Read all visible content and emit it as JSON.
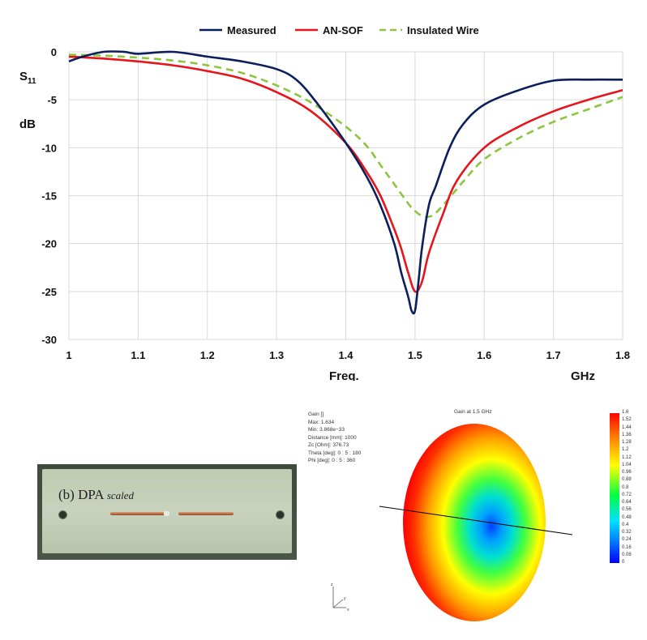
{
  "chart_data": {
    "type": "line",
    "xlabel": "Freq.",
    "xunit": "GHz",
    "ylabel": "S11",
    "yunit": "dB",
    "xlim": [
      1,
      1.8
    ],
    "ylim": [
      -30,
      0
    ],
    "xticks": [
      "1",
      "1.1",
      "1.2",
      "1.3",
      "1.4",
      "1.5",
      "1.6",
      "1.7",
      "1.8"
    ],
    "yticks": [
      "0",
      "-5",
      "-10",
      "-15",
      "-20",
      "-25",
      "-30"
    ],
    "grid": true,
    "legend": "top",
    "series": [
      {
        "name": "Measured",
        "color": "#0b1f5c",
        "style": "solid",
        "x": [
          1.0,
          1.02,
          1.05,
          1.08,
          1.1,
          1.15,
          1.2,
          1.25,
          1.3,
          1.33,
          1.36,
          1.4,
          1.43,
          1.45,
          1.47,
          1.48,
          1.49,
          1.495,
          1.5,
          1.505,
          1.51,
          1.52,
          1.53,
          1.55,
          1.57,
          1.6,
          1.65,
          1.7,
          1.75,
          1.8
        ],
        "y": [
          -1.0,
          -0.5,
          0.0,
          0.0,
          -0.2,
          0.0,
          -0.5,
          -1.0,
          -1.8,
          -3.0,
          -5.5,
          -9.5,
          -13.0,
          -16.0,
          -20.0,
          -23.0,
          -25.5,
          -27.0,
          -27.0,
          -24.0,
          -20.5,
          -16.0,
          -14.0,
          -10.0,
          -7.5,
          -5.5,
          -4.0,
          -3.0,
          -2.9,
          -2.9
        ]
      },
      {
        "name": "AN-SOF",
        "color": "#e8141b",
        "style": "solid",
        "x": [
          1.0,
          1.05,
          1.1,
          1.15,
          1.2,
          1.25,
          1.3,
          1.35,
          1.4,
          1.43,
          1.45,
          1.47,
          1.48,
          1.49,
          1.5,
          1.51,
          1.52,
          1.54,
          1.56,
          1.6,
          1.65,
          1.7,
          1.75,
          1.8
        ],
        "y": [
          -0.5,
          -0.7,
          -1.0,
          -1.4,
          -2.0,
          -2.8,
          -4.2,
          -6.2,
          -9.5,
          -12.5,
          -15.0,
          -18.5,
          -20.5,
          -23.0,
          -25.0,
          -24.0,
          -21.0,
          -17.0,
          -13.5,
          -10.0,
          -7.8,
          -6.2,
          -5.0,
          -4.0
        ]
      },
      {
        "name": "Insulated Wire",
        "color": "#8cc63f",
        "style": "dashed",
        "x": [
          1.0,
          1.05,
          1.1,
          1.15,
          1.2,
          1.25,
          1.3,
          1.35,
          1.4,
          1.43,
          1.45,
          1.47,
          1.49,
          1.5,
          1.51,
          1.52,
          1.53,
          1.55,
          1.57,
          1.6,
          1.65,
          1.7,
          1.75,
          1.8
        ],
        "y": [
          -0.3,
          -0.4,
          -0.6,
          -0.9,
          -1.4,
          -2.2,
          -3.5,
          -5.3,
          -7.8,
          -9.8,
          -11.8,
          -13.8,
          -15.8,
          -16.6,
          -17.1,
          -17.2,
          -16.8,
          -15.2,
          -13.5,
          -11.2,
          -9.0,
          -7.3,
          -6.0,
          -4.7
        ]
      }
    ]
  },
  "photo": {
    "label": "(b) DPA",
    "label_sub": "scaled"
  },
  "pattern": {
    "title": "Gain at 1.5 GHz",
    "info": [
      "Gain []",
      "Max: 1.634",
      "Min: 3.868e−33",
      "Distance [mm]: 1000",
      "Zc [Ohm]: 376.73",
      "Theta [deg]: 0 : 5 : 180",
      "Phi [deg]: 0 : 5 : 360"
    ],
    "colorbar": [
      "1.6",
      "1.52",
      "1.44",
      "1.36",
      "1.28",
      "1.2",
      "1.12",
      "1.04",
      "0.96",
      "0.88",
      "0.8",
      "0.72",
      "0.64",
      "0.56",
      "0.48",
      "0.4",
      "0.32",
      "0.24",
      "0.16",
      "0.08",
      "0"
    ],
    "axes": {
      "z": "z",
      "y": "y",
      "x": "x"
    }
  }
}
